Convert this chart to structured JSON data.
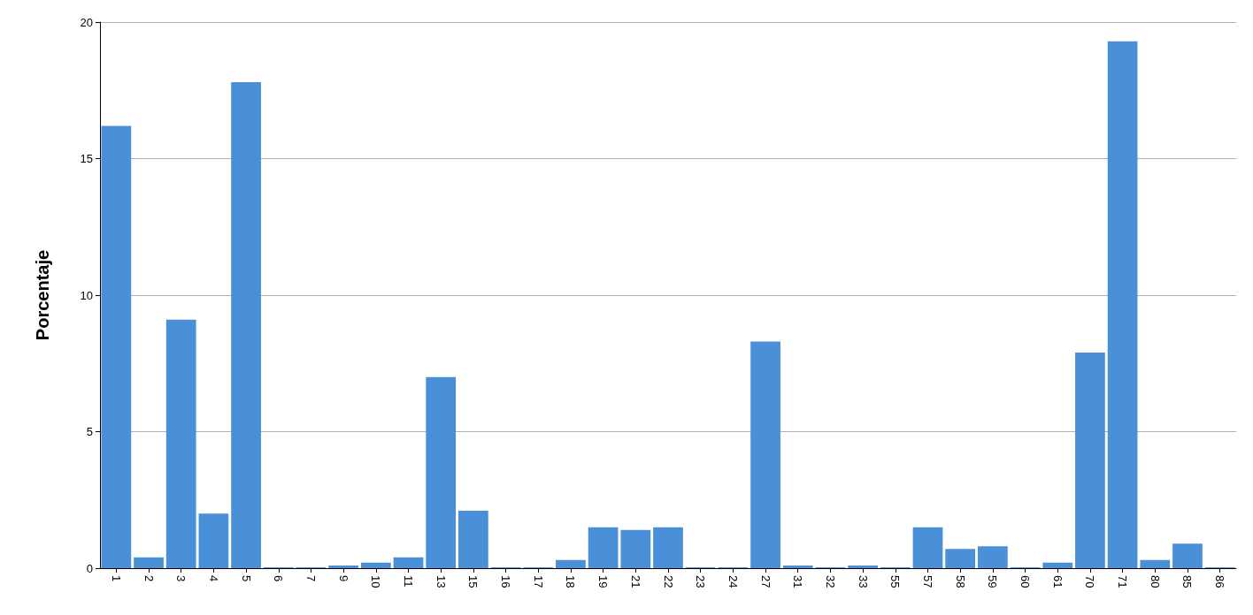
{
  "chart_data": {
    "type": "bar",
    "ylabel": "Porcentaje",
    "categories": [
      "1",
      "2",
      "3",
      "4",
      "5",
      "6",
      "7",
      "9",
      "10",
      "11",
      "13",
      "15",
      "16",
      "17",
      "18",
      "19",
      "21",
      "22",
      "23",
      "24",
      "27",
      "31",
      "32",
      "33",
      "55",
      "57",
      "58",
      "59",
      "60",
      "61",
      "70",
      "71",
      "80",
      "85",
      "86"
    ],
    "values": [
      16.2,
      0.4,
      9.1,
      2.0,
      17.8,
      0.03,
      0.03,
      0.1,
      0.2,
      0.4,
      7.0,
      2.1,
      0.03,
      0.03,
      0.3,
      1.5,
      1.4,
      1.5,
      0.03,
      0.03,
      8.3,
      0.1,
      0.03,
      0.1,
      0.03,
      1.5,
      0.7,
      0.8,
      0.03,
      0.2,
      7.9,
      19.3,
      0.3,
      0.9,
      0.03
    ],
    "color": "#4a90d9",
    "ylim": [
      0,
      20
    ],
    "yticks": [
      0,
      5,
      10,
      15,
      20
    ],
    "grid": "y"
  }
}
